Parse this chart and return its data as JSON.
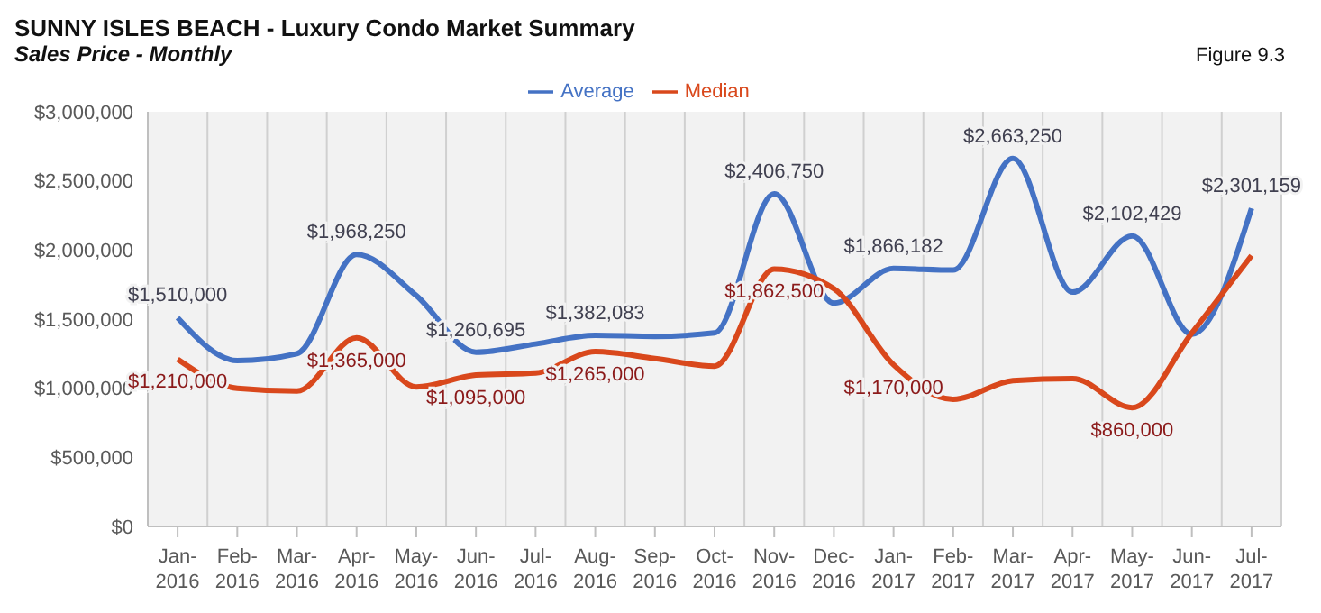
{
  "chart_data": {
    "type": "line",
    "title": "SUNNY ISLES BEACH - Luxury Condo Market Summary",
    "subtitle": "Sales Price - Monthly",
    "annotations": [
      "Figure 9.3"
    ],
    "categories": [
      "Jan-2016",
      "Feb-2016",
      "Mar-2016",
      "Apr-2016",
      "May-2016",
      "Jun-2016",
      "Jul-2016",
      "Aug-2016",
      "Sep-2016",
      "Oct-2016",
      "Nov-2016",
      "Dec-2016",
      "Jan-2017",
      "Feb-2017",
      "Mar-2017",
      "Apr-2017",
      "May-2017",
      "Jun-2017",
      "Jul-2017"
    ],
    "series": [
      {
        "name": "Average",
        "color": "#4472c4",
        "values": [
          1510000,
          1200000,
          1250000,
          1968250,
          1670000,
          1260695,
          1320000,
          1382083,
          1375000,
          1400000,
          2406750,
          1615000,
          1866182,
          1855000,
          2663250,
          1695000,
          2102429,
          1390000,
          2301159
        ],
        "value_labels": [
          "$1,510,000",
          null,
          null,
          "$1,968,250",
          null,
          "$1,260,695",
          null,
          "$1,382,083",
          null,
          null,
          "$2,406,750",
          null,
          "$1,866,182",
          null,
          "$2,663,250",
          null,
          "$2,102,429",
          null,
          "$2,301,159"
        ]
      },
      {
        "name": "Median",
        "color": "#d9481c",
        "values": [
          1210000,
          1000000,
          980000,
          1365000,
          1010000,
          1095000,
          1110000,
          1265000,
          1215000,
          1160000,
          1862500,
          1720000,
          1170000,
          920000,
          1055000,
          1070000,
          860000,
          1400000,
          1960000
        ],
        "value_labels": [
          "$1,210,000",
          null,
          null,
          "$1,365,000",
          null,
          "$1,095,000",
          null,
          "$1,265,000",
          null,
          null,
          "$1,862,500",
          null,
          "$1,170,000",
          null,
          null,
          null,
          "$860,000",
          null,
          null
        ]
      }
    ],
    "ylim": [
      0,
      3000000
    ],
    "yticks": [
      {
        "value": 0,
        "label": "$0"
      },
      {
        "value": 500000,
        "label": "$500,000"
      },
      {
        "value": 1000000,
        "label": "$1,000,000"
      },
      {
        "value": 1500000,
        "label": "$1,500,000"
      },
      {
        "value": 2000000,
        "label": "$2,000,000"
      },
      {
        "value": 2500000,
        "label": "$2,500,000"
      },
      {
        "value": 3000000,
        "label": "$3,000,000"
      }
    ],
    "grid": "x",
    "legend": "top"
  }
}
